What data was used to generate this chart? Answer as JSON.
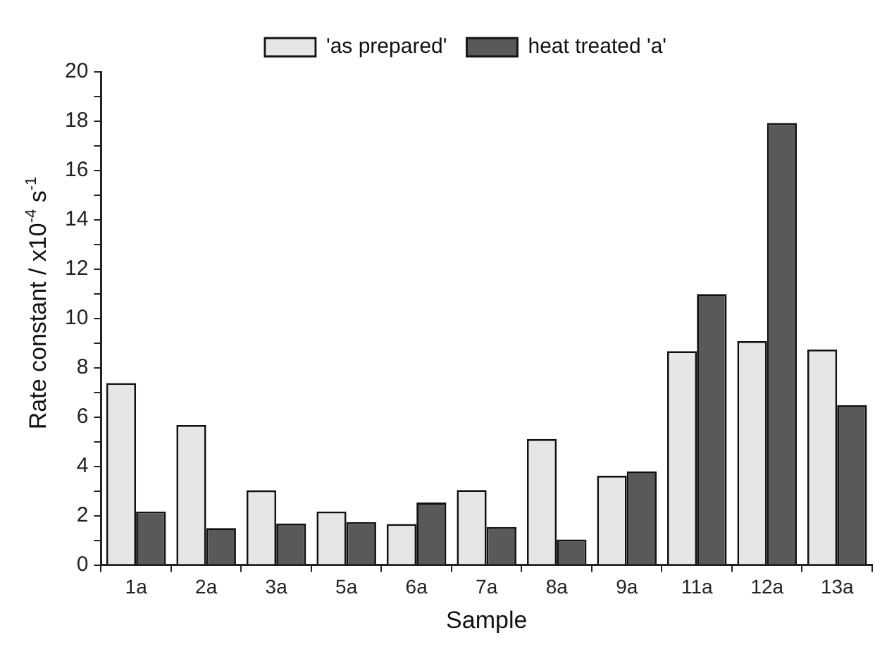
{
  "chart_data": {
    "type": "bar",
    "xlabel": "Sample",
    "ylabel": "Rate constant / x10$^{-4}$ s$^{-1}$",
    "categories": [
      "1a",
      "2a",
      "3a",
      "5a",
      "6a",
      "7a",
      "8a",
      "9a",
      "11a",
      "12a",
      "13a"
    ],
    "series": [
      {
        "name": "'as prepared'",
        "color": "#e6e6e6",
        "values": [
          7.38,
          5.68,
          3.03,
          2.17,
          1.66,
          3.04,
          5.11,
          3.62,
          8.67,
          9.08,
          8.74
        ]
      },
      {
        "name": "heat treated 'a'",
        "color": "#595959",
        "values": [
          2.17,
          1.5,
          1.68,
          1.74,
          2.53,
          1.54,
          1.03,
          3.79,
          10.99,
          17.93,
          6.48
        ]
      }
    ],
    "ylim": [
      0,
      20
    ],
    "yticks": [
      0,
      {
        "value": 1,
        "label": null
      },
      2,
      {
        "value": 3,
        "label": null
      },
      4,
      {
        "value": 5,
        "label": null
      },
      6,
      {
        "value": 7,
        "label": null
      },
      8,
      {
        "value": 9,
        "label": null
      },
      10,
      {
        "value": 11,
        "label": null
      },
      12,
      {
        "value": 13,
        "label": null
      },
      14,
      {
        "value": 15,
        "label": null
      },
      16,
      {
        "value": 17,
        "label": null
      },
      18,
      {
        "value": 19,
        "label": null
      },
      20
    ],
    "grid": false,
    "legend": "top"
  }
}
